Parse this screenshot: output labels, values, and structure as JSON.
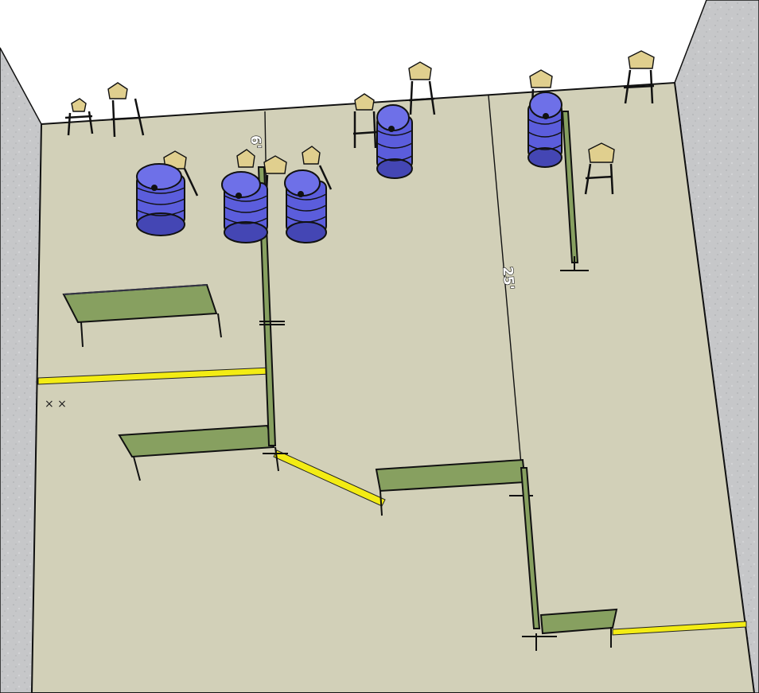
{
  "scene": {
    "labels": {
      "dim_left": "6'",
      "dim_center": "25'",
      "marks": "× ×"
    },
    "colors": {
      "sky": "#ffffff",
      "floor": "#d2d0b8",
      "wall": "#c6c7c9",
      "barrier_fill": "#87a060",
      "barrier_top": "#9bb073",
      "fault_line": "#f3ec14",
      "barrel": "#6e70e8",
      "barrel_dark": "#4446b4",
      "target": "#e0cf8e",
      "outline": "#111111"
    },
    "object_counts": {
      "barrel_stacks": 5,
      "targets": 11,
      "fault_lines": 3
    }
  }
}
